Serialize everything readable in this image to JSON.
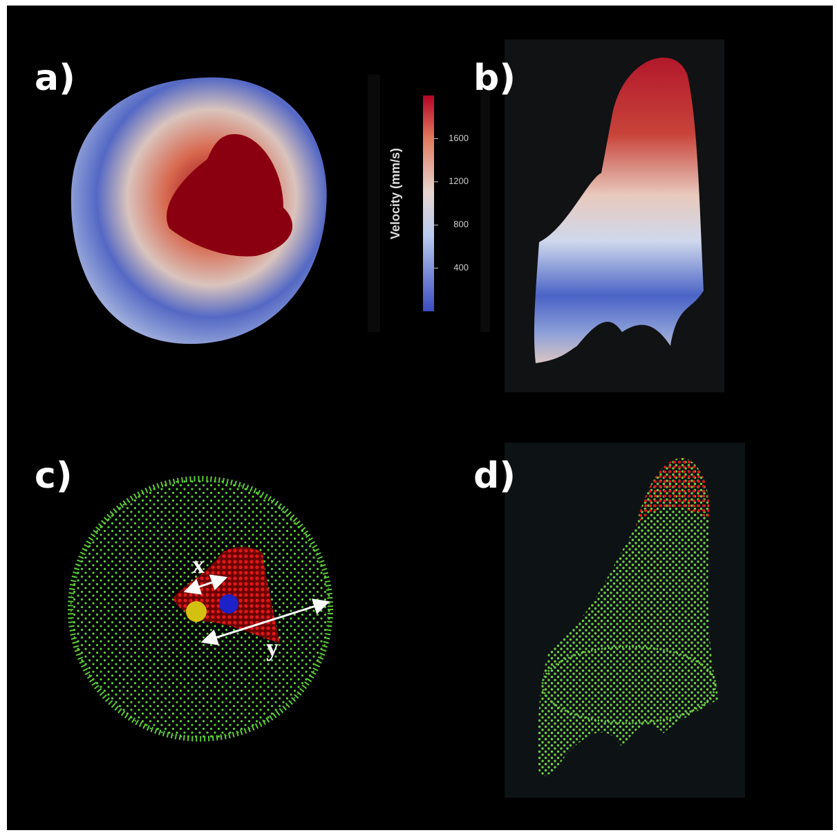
{
  "panels": {
    "a": {
      "label": "a)"
    },
    "b": {
      "label": "b)"
    },
    "c": {
      "label": "c)",
      "annotations": [
        "x",
        "y"
      ]
    },
    "d": {
      "label": "d)"
    }
  },
  "colorbar": {
    "title": "Velocity (mm/s)",
    "range": [
      0,
      2000
    ],
    "ticks": [
      400,
      800,
      1200,
      1600
    ]
  }
}
